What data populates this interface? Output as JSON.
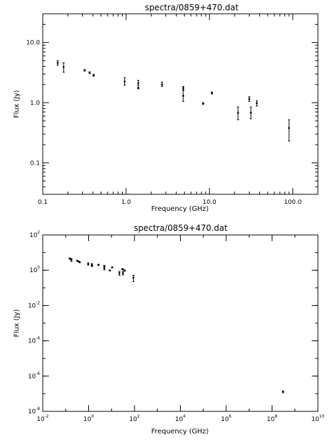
{
  "chart_data": [
    {
      "type": "scatter",
      "title": "spectra/0859+470.dat",
      "xlabel": "Frequency (GHz)",
      "ylabel": "Flux (Jy)",
      "xscale": "log",
      "yscale": "log",
      "xlim": [
        0.1,
        200
      ],
      "ylim": [
        0.03,
        30
      ],
      "xticks": [
        {
          "v": 0.1,
          "label": "0.1"
        },
        {
          "v": 1,
          "label": "1.0"
        },
        {
          "v": 10,
          "label": "10.0"
        },
        {
          "v": 100,
          "label": "100.0"
        }
      ],
      "yticks": [
        {
          "v": 0.1,
          "label": "0.1"
        },
        {
          "v": 1,
          "label": "1.0"
        },
        {
          "v": 10,
          "label": "10.0"
        }
      ],
      "points": [
        {
          "x": 0.151,
          "y": 4.6,
          "lo": 4.2,
          "hi": 5.0
        },
        {
          "x": 0.178,
          "y": 3.9,
          "lo": 3.2,
          "hi": 4.6
        },
        {
          "x": 0.318,
          "y": 3.45,
          "lo": 3.35,
          "hi": 3.55
        },
        {
          "x": 0.365,
          "y": 3.15,
          "lo": 3.05,
          "hi": 3.25
        },
        {
          "x": 0.408,
          "y": 2.85,
          "lo": 2.75,
          "hi": 2.95
        },
        {
          "x": 0.96,
          "y": 2.25,
          "lo": 1.95,
          "hi": 2.6
        },
        {
          "x": 1.4,
          "y": 2.1,
          "lo": 1.9,
          "hi": 2.35
        },
        {
          "x": 1.4,
          "y": 1.75,
          "lo": 1.7,
          "hi": 1.8
        },
        {
          "x": 2.7,
          "y": 2.0,
          "lo": 1.85,
          "hi": 2.2
        },
        {
          "x": 4.85,
          "y": 1.3,
          "lo": 1.05,
          "hi": 1.6
        },
        {
          "x": 4.85,
          "y": 1.75,
          "lo": 1.65,
          "hi": 1.85
        },
        {
          "x": 8.4,
          "y": 0.97,
          "lo": 0.94,
          "hi": 1.0
        },
        {
          "x": 10.7,
          "y": 1.45,
          "lo": 1.4,
          "hi": 1.5
        },
        {
          "x": 22,
          "y": 0.68,
          "lo": 0.52,
          "hi": 0.85
        },
        {
          "x": 30,
          "y": 1.15,
          "lo": 1.05,
          "hi": 1.25
        },
        {
          "x": 31.4,
          "y": 0.68,
          "lo": 0.54,
          "hi": 0.85
        },
        {
          "x": 37,
          "y": 0.98,
          "lo": 0.88,
          "hi": 1.08
        },
        {
          "x": 90,
          "y": 0.38,
          "lo": 0.23,
          "hi": 0.52
        }
      ]
    },
    {
      "type": "scatter",
      "title": "spectra/0859+470.dat",
      "xlabel": "Frequency (GHz)",
      "ylabel": "Flux (Jy)",
      "xscale": "log",
      "yscale": "log",
      "xlim": [
        0.01,
        10000000000
      ],
      "ylim": [
        1e-08,
        100
      ],
      "xticks": [
        {
          "v": 0.01,
          "base": "10",
          "exp": "-2"
        },
        {
          "v": 1,
          "base": "10",
          "exp": "0"
        },
        {
          "v": 100,
          "base": "10",
          "exp": "2"
        },
        {
          "v": 10000,
          "base": "10",
          "exp": "4"
        },
        {
          "v": 1000000,
          "base": "10",
          "exp": "6"
        },
        {
          "v": 100000000,
          "base": "10",
          "exp": "8"
        },
        {
          "v": 10000000000,
          "base": "10",
          "exp": "10"
        }
      ],
      "yticks": [
        {
          "v": 1e-08,
          "base": "10",
          "exp": "-8"
        },
        {
          "v": 1e-06,
          "base": "10",
          "exp": "-6"
        },
        {
          "v": 0.0001,
          "base": "10",
          "exp": "-4"
        },
        {
          "v": 0.01,
          "base": "10",
          "exp": "-2"
        },
        {
          "v": 1,
          "base": "10",
          "exp": "0"
        },
        {
          "v": 100,
          "base": "10",
          "exp": "2"
        }
      ],
      "points": [
        {
          "x": 0.151,
          "y": 4.6,
          "lo": 4.2,
          "hi": 5.0
        },
        {
          "x": 0.178,
          "y": 3.9,
          "lo": 3.2,
          "hi": 4.6
        },
        {
          "x": 0.318,
          "y": 3.45,
          "lo": 3.35,
          "hi": 3.55
        },
        {
          "x": 0.365,
          "y": 3.15,
          "lo": 3.05,
          "hi": 3.25
        },
        {
          "x": 0.408,
          "y": 2.85,
          "lo": 2.75,
          "hi": 2.95
        },
        {
          "x": 0.96,
          "y": 2.25,
          "lo": 1.95,
          "hi": 2.6
        },
        {
          "x": 1.4,
          "y": 2.1,
          "lo": 1.9,
          "hi": 2.35
        },
        {
          "x": 1.4,
          "y": 1.75,
          "lo": 1.7,
          "hi": 1.8
        },
        {
          "x": 2.7,
          "y": 2.0,
          "lo": 1.85,
          "hi": 2.2
        },
        {
          "x": 4.85,
          "y": 1.3,
          "lo": 1.05,
          "hi": 1.6
        },
        {
          "x": 4.85,
          "y": 1.75,
          "lo": 1.65,
          "hi": 1.85
        },
        {
          "x": 8.4,
          "y": 0.97,
          "lo": 0.94,
          "hi": 1.0
        },
        {
          "x": 10.7,
          "y": 1.45,
          "lo": 1.4,
          "hi": 1.5
        },
        {
          "x": 22,
          "y": 0.68,
          "lo": 0.52,
          "hi": 0.85
        },
        {
          "x": 30,
          "y": 1.15,
          "lo": 1.05,
          "hi": 1.25
        },
        {
          "x": 31.4,
          "y": 0.68,
          "lo": 0.54,
          "hi": 0.85
        },
        {
          "x": 37,
          "y": 0.98,
          "lo": 0.88,
          "hi": 1.08
        },
        {
          "x": 90,
          "y": 0.38,
          "lo": 0.23,
          "hi": 0.52
        },
        {
          "x": 300000000,
          "y": 1.3e-07,
          "lo": 1.15e-07,
          "hi": 1.45e-07
        }
      ]
    }
  ]
}
